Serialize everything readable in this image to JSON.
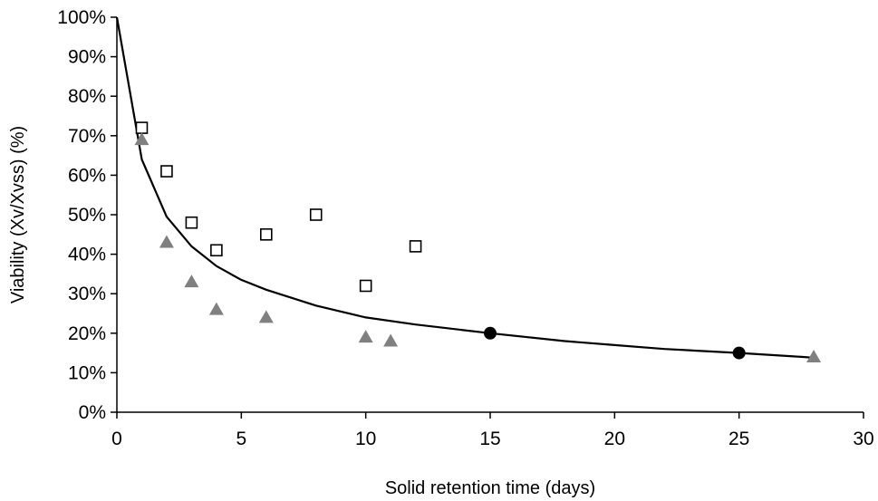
{
  "chart_data": {
    "type": "scatter",
    "title": "",
    "xlabel": "Solid retention time (days)",
    "ylabel": "Viability (Xv/Xvss) (%)",
    "xlim": [
      0,
      30
    ],
    "ylim": [
      0,
      100
    ],
    "x_ticks": [
      0,
      5,
      10,
      15,
      20,
      25,
      30
    ],
    "y_ticks": [
      0,
      10,
      20,
      30,
      40,
      50,
      60,
      70,
      80,
      90,
      100
    ],
    "x_tick_labels": [
      "0",
      "5",
      "10",
      "15",
      "20",
      "25",
      "30"
    ],
    "y_tick_labels": [
      "0%",
      "10%",
      "20%",
      "30%",
      "40%",
      "50%",
      "60%",
      "70%",
      "80%",
      "90%",
      "100%"
    ],
    "grid": false,
    "legend": "none",
    "series": [
      {
        "marker": "square-open",
        "color": "#000000",
        "x": [
          1,
          2,
          3,
          4,
          6,
          8,
          10,
          12
        ],
        "y": [
          72,
          61,
          48,
          41,
          45,
          50,
          32,
          42
        ]
      },
      {
        "marker": "triangle",
        "color": "#808080",
        "x": [
          1,
          2,
          3,
          4,
          6,
          10,
          11,
          28
        ],
        "y": [
          69,
          43,
          33,
          26,
          24,
          19,
          18,
          14
        ]
      },
      {
        "marker": "circle",
        "color": "#000000",
        "x": [
          15,
          25
        ],
        "y": [
          20,
          15
        ]
      },
      {
        "marker": "line",
        "color": "#000000",
        "x": [
          0,
          1,
          2,
          3,
          4,
          5,
          6,
          8,
          10,
          12,
          15,
          18,
          20,
          22,
          25,
          28
        ],
        "y": [
          100,
          64,
          49.5,
          42,
          37,
          33.5,
          31,
          27,
          24,
          22.2,
          20,
          18,
          17,
          16,
          15,
          13.8
        ]
      }
    ]
  }
}
